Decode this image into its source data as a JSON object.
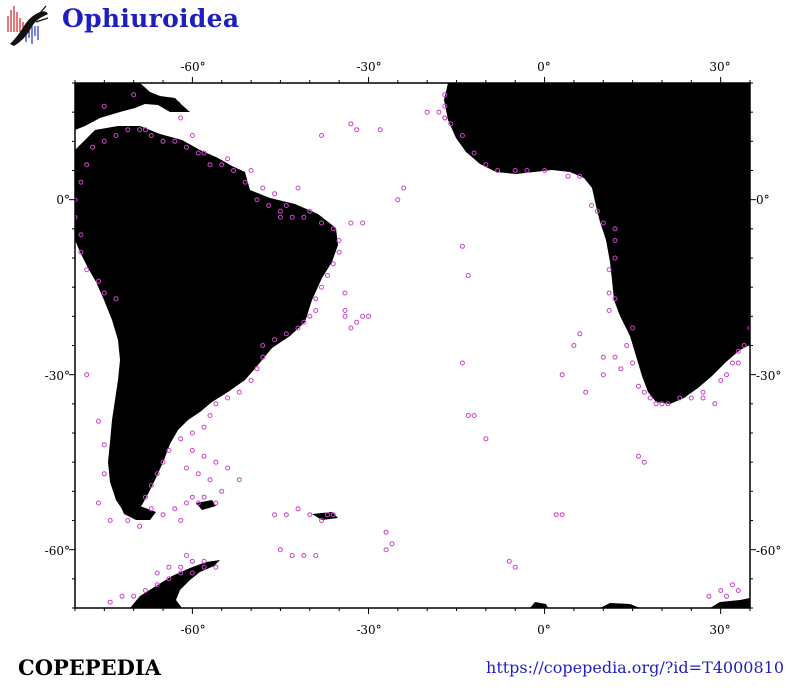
{
  "header": {
    "title": "Ophiuroidea",
    "logo_icon": "copepedia-logo-icon"
  },
  "map": {
    "lon_range": [
      -80,
      35
    ],
    "lat_range": [
      -70,
      20
    ],
    "x_ticks": [
      -60,
      -30,
      0,
      30
    ],
    "y_ticks": [
      0,
      -30,
      -60
    ],
    "x_tick_labels": [
      "-60°",
      "-30°",
      "0°",
      "30°"
    ],
    "y_tick_labels": [
      "0°",
      "-30°",
      "-60°"
    ],
    "land_color": "#000000",
    "ocean_color": "#ffffff",
    "point_color": "#cc44cc",
    "points": [
      [
        -75,
        16
      ],
      [
        -70,
        18
      ],
      [
        -68,
        12
      ],
      [
        -62,
        14
      ],
      [
        -60,
        11
      ],
      [
        -58,
        8
      ],
      [
        -54,
        7
      ],
      [
        -50,
        5
      ],
      [
        -48,
        2
      ],
      [
        -46,
        1
      ],
      [
        -44,
        -1
      ],
      [
        -40,
        -2
      ],
      [
        -38,
        -4
      ],
      [
        -36,
        -5
      ],
      [
        -35,
        -7
      ],
      [
        -35,
        -9
      ],
      [
        -36,
        -11
      ],
      [
        -37,
        -13
      ],
      [
        -38,
        -15
      ],
      [
        -39,
        -17
      ],
      [
        -39,
        -19
      ],
      [
        -40,
        -20
      ],
      [
        -41,
        -21
      ],
      [
        -42,
        -22
      ],
      [
        -44,
        -23
      ],
      [
        -46,
        -24
      ],
      [
        -48,
        -25
      ],
      [
        -48,
        -27
      ],
      [
        -49,
        -29
      ],
      [
        -50,
        -31
      ],
      [
        -52,
        -33
      ],
      [
        -54,
        -34
      ],
      [
        -56,
        -35
      ],
      [
        -57,
        -37
      ],
      [
        -58,
        -39
      ],
      [
        -60,
        -40
      ],
      [
        -62,
        -41
      ],
      [
        -64,
        -43
      ],
      [
        -65,
        -45
      ],
      [
        -66,
        -47
      ],
      [
        -67,
        -49
      ],
      [
        -68,
        -51
      ],
      [
        -67,
        -53
      ],
      [
        -65,
        -54
      ],
      [
        -62,
        -55
      ],
      [
        -59,
        -52
      ],
      [
        -58,
        -51
      ],
      [
        -60,
        -51
      ],
      [
        -61,
        -52
      ],
      [
        -63,
        -53
      ],
      [
        -55,
        -50
      ],
      [
        -57,
        -48
      ],
      [
        -59,
        -47
      ],
      [
        -61,
        -46
      ],
      [
        -56,
        -45
      ],
      [
        -58,
        -44
      ],
      [
        -60,
        -43
      ],
      [
        -54,
        -46
      ],
      [
        -52,
        -48
      ],
      [
        -56,
        -52
      ],
      [
        -37,
        -54
      ],
      [
        -36,
        -54
      ],
      [
        -38,
        -55
      ],
      [
        -40,
        -54
      ],
      [
        -42,
        -53
      ],
      [
        -44,
        -54
      ],
      [
        -46,
        -54
      ],
      [
        -27,
        -57
      ],
      [
        -26,
        -59
      ],
      [
        -27,
        -60
      ],
      [
        -45,
        -60
      ],
      [
        -43,
        -61
      ],
      [
        -41,
        -61
      ],
      [
        -39,
        -61
      ],
      [
        -60,
        -62
      ],
      [
        -58,
        -62
      ],
      [
        -56,
        -63
      ],
      [
        -58,
        -63
      ],
      [
        -60,
        -64
      ],
      [
        -62,
        -64
      ],
      [
        -64,
        -65
      ],
      [
        -66,
        -66
      ],
      [
        -68,
        -67
      ],
      [
        -70,
        -68
      ],
      [
        -72,
        -68
      ],
      [
        -74,
        -69
      ],
      [
        -66,
        -64
      ],
      [
        -64,
        -63
      ],
      [
        -62,
        -63
      ],
      [
        -61,
        -61
      ],
      [
        -78,
        -30
      ],
      [
        -76,
        -38
      ],
      [
        -75,
        -42
      ],
      [
        -75,
        -47
      ],
      [
        -76,
        -52
      ],
      [
        -74,
        -55
      ],
      [
        -71,
        -55
      ],
      [
        -69,
        -56
      ],
      [
        -30,
        -20
      ],
      [
        -31,
        -20
      ],
      [
        -32,
        -21
      ],
      [
        -33,
        -22
      ],
      [
        -34,
        -20
      ],
      [
        -31,
        -4
      ],
      [
        -33,
        -4
      ],
      [
        -34,
        -19
      ],
      [
        -34,
        -16
      ],
      [
        -20,
        15
      ],
      [
        -18,
        15
      ],
      [
        -17,
        14
      ],
      [
        -24,
        2
      ],
      [
        -25,
        0
      ],
      [
        -28,
        12
      ],
      [
        -33,
        13
      ],
      [
        -32,
        12
      ],
      [
        -38,
        11
      ],
      [
        -42,
        2
      ],
      [
        -14,
        -8
      ],
      [
        -13,
        -13
      ],
      [
        -14,
        -28
      ],
      [
        -13,
        -37
      ],
      [
        -12,
        -37
      ],
      [
        -10,
        -41
      ],
      [
        -6,
        -62
      ],
      [
        -5,
        -63
      ],
      [
        2,
        -54
      ],
      [
        3,
        -54
      ],
      [
        6,
        -23
      ],
      [
        5,
        -25
      ],
      [
        3,
        -30
      ],
      [
        7,
        -33
      ],
      [
        10,
        -30
      ],
      [
        12,
        -27
      ],
      [
        13,
        -29
      ],
      [
        10,
        -27
      ],
      [
        11,
        -19
      ],
      [
        11,
        -16
      ],
      [
        12,
        -17
      ],
      [
        11,
        -12
      ],
      [
        12,
        -10
      ],
      [
        12,
        -7
      ],
      [
        12,
        -5
      ],
      [
        10,
        -4
      ],
      [
        9,
        -2
      ],
      [
        8,
        -1
      ],
      [
        6,
        4
      ],
      [
        4,
        4
      ],
      [
        0,
        5
      ],
      [
        -3,
        5
      ],
      [
        -5,
        5
      ],
      [
        -8,
        5
      ],
      [
        -10,
        6
      ],
      [
        -12,
        8
      ],
      [
        -14,
        11
      ],
      [
        -16,
        13
      ],
      [
        -17,
        14
      ],
      [
        -17,
        16
      ],
      [
        -17,
        18
      ],
      [
        15,
        -22
      ],
      [
        14,
        -25
      ],
      [
        15,
        -28
      ],
      [
        16,
        -32
      ],
      [
        17,
        -33
      ],
      [
        18,
        -34
      ],
      [
        20,
        -35
      ],
      [
        21,
        -35
      ],
      [
        23,
        -34
      ],
      [
        25,
        -34
      ],
      [
        27,
        -33
      ],
      [
        30,
        -31
      ],
      [
        31,
        -30
      ],
      [
        32,
        -28
      ],
      [
        33,
        -26
      ],
      [
        34,
        -25
      ],
      [
        35,
        -22
      ],
      [
        16,
        -44
      ],
      [
        17,
        -45
      ],
      [
        19,
        -35
      ],
      [
        27,
        -34
      ],
      [
        29,
        -35
      ],
      [
        33,
        -28
      ],
      [
        32,
        -66
      ],
      [
        30,
        -67
      ],
      [
        28,
        -68
      ],
      [
        31,
        -68
      ],
      [
        33,
        -67
      ],
      [
        -45,
        -2
      ],
      [
        -45,
        -3
      ],
      [
        -43,
        -3
      ],
      [
        -41,
        -3
      ],
      [
        -47,
        -1
      ],
      [
        -49,
        0
      ],
      [
        -51,
        3
      ],
      [
        -53,
        5
      ],
      [
        -55,
        6
      ],
      [
        -57,
        6
      ],
      [
        -59,
        8
      ],
      [
        -61,
        9
      ],
      [
        -63,
        10
      ],
      [
        -65,
        10
      ],
      [
        -67,
        11
      ],
      [
        -69,
        12
      ],
      [
        -71,
        12
      ],
      [
        -73,
        11
      ],
      [
        -75,
        10
      ],
      [
        -77,
        9
      ],
      [
        -78,
        6
      ],
      [
        -79,
        3
      ],
      [
        -80,
        0
      ],
      [
        -80,
        -3
      ],
      [
        -79,
        -6
      ],
      [
        -79,
        -9
      ],
      [
        -78,
        -12
      ],
      [
        -76,
        -14
      ],
      [
        -75,
        -16
      ],
      [
        -73,
        -17
      ]
    ]
  },
  "footer": {
    "brand": "COPEPEDIA",
    "url": "https://copepedia.org/?id=T4000810"
  }
}
